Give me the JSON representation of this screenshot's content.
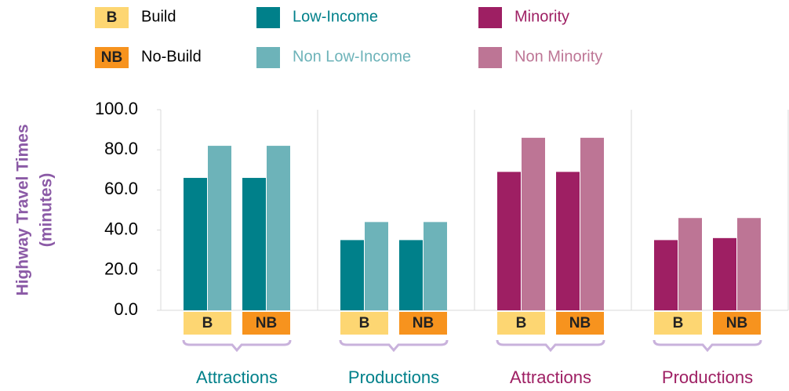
{
  "chart_data": {
    "type": "grouped_bar",
    "ylabel": [
      "Highway Travel Times",
      "(minutes)"
    ],
    "scenarios": [
      {
        "code": "B",
        "name": "Build",
        "color": "#fdd672"
      },
      {
        "code": "NB",
        "name": "No-Build",
        "color": "#f7931e"
      }
    ],
    "groups": [
      "Attractions",
      "Productions",
      "Attractions",
      "Productions"
    ],
    "categories": [
      "B",
      "NB",
      "B",
      "NB",
      "B",
      "NB",
      "B",
      "NB"
    ],
    "series": [
      {
        "name": "Low-Income",
        "color": "#00808a",
        "values": [
          66,
          66,
          35,
          35,
          null,
          null,
          null,
          null
        ]
      },
      {
        "name": "Non Low-Income",
        "color": "#6db3b9",
        "values": [
          82,
          82,
          44,
          44,
          null,
          null,
          null,
          null
        ]
      },
      {
        "name": "Minority",
        "color": "#9e1f63",
        "values": [
          null,
          null,
          null,
          null,
          69,
          69,
          35,
          36
        ]
      },
      {
        "name": "Non Minority",
        "color": "#bd7595",
        "values": [
          null,
          null,
          null,
          null,
          86,
          86,
          46,
          46
        ]
      }
    ],
    "ylim": [
      0,
      100
    ],
    "yticks": [
      {
        "value": 0,
        "label": "0.0"
      },
      {
        "value": 20,
        "label": "20.0"
      },
      {
        "value": 40,
        "label": "40.0"
      },
      {
        "value": 60,
        "label": "60.0"
      },
      {
        "value": 80,
        "label": "80.0"
      },
      {
        "value": 100,
        "label": "100.0"
      }
    ]
  }
}
